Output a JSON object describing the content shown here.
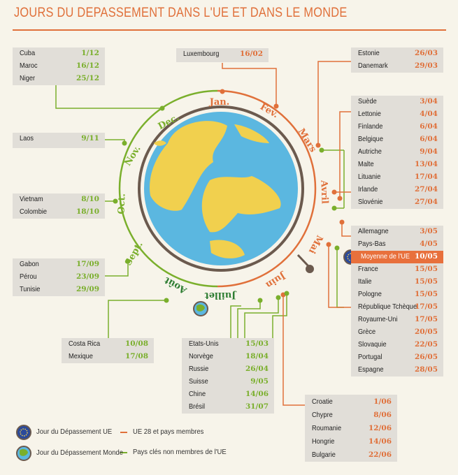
{
  "title": "JOURS DU DEPASSEMENT DANS L'UE ET DANS LE MONDE",
  "colors": {
    "eu": "#e0703a",
    "world": "#7aaf2c",
    "highlight": "#e8703c"
  },
  "months": [
    "Jan.",
    "Fev.",
    "Mars",
    "Avril",
    "Mai",
    "Juin",
    "Juillet",
    "Août",
    "Sept.",
    "Oct.",
    "Nov.",
    "Dec."
  ],
  "groups": {
    "cuba": [
      {
        "country": "Cuba",
        "date": "1/12"
      },
      {
        "country": "Maroc",
        "date": "16/12"
      },
      {
        "country": "Niger",
        "date": "25/12"
      }
    ],
    "laos": [
      {
        "country": "Laos",
        "date": "9/11"
      }
    ],
    "vietnam": [
      {
        "country": "Vietnam",
        "date": "8/10"
      },
      {
        "country": "Colombie",
        "date": "18/10"
      }
    ],
    "gabon": [
      {
        "country": "Gabon",
        "date": "17/09"
      },
      {
        "country": "Pérou",
        "date": "23/09"
      },
      {
        "country": "Tunisie",
        "date": "29/09"
      }
    ],
    "costarica": [
      {
        "country": "Costa Rica",
        "date": "10/08"
      },
      {
        "country": "Mexique",
        "date": "17/08"
      }
    ],
    "usa": [
      {
        "country": "Etats-Unis",
        "date": "15/03"
      },
      {
        "country": "Norvège",
        "date": "18/04"
      },
      {
        "country": "Russie",
        "date": "26/04"
      },
      {
        "country": "Suisse",
        "date": "9/05"
      },
      {
        "country": "Chine",
        "date": "14/06"
      },
      {
        "country": "Brésil",
        "date": "31/07"
      }
    ],
    "luxembourg": [
      {
        "country": "Luxembourg",
        "date": "16/02"
      }
    ],
    "estonie": [
      {
        "country": "Estonie",
        "date": "26/03"
      },
      {
        "country": "Danemark",
        "date": "29/03"
      }
    ],
    "suede": [
      {
        "country": "Suède",
        "date": "3/04"
      },
      {
        "country": "Lettonie",
        "date": "4/04"
      },
      {
        "country": "Finlande",
        "date": "6/04"
      },
      {
        "country": "Belgique",
        "date": "6/04"
      },
      {
        "country": "Autriche",
        "date": "9/04"
      },
      {
        "country": "Malte",
        "date": "13/04"
      },
      {
        "country": "Lituanie",
        "date": "17/04"
      },
      {
        "country": "Irlande",
        "date": "27/04"
      },
      {
        "country": "Slovénie",
        "date": "27/04"
      }
    ],
    "allemagne": [
      {
        "country": "Allemagne",
        "date": "3/05"
      },
      {
        "country": "Pays-Bas",
        "date": "4/05"
      },
      {
        "country": "Moyenne de l'UE",
        "date": "10/05"
      },
      {
        "country": "France",
        "date": "15/05"
      },
      {
        "country": "Italie",
        "date": "15/05"
      },
      {
        "country": "Pologne",
        "date": "15/05"
      },
      {
        "country": "République Tchèque",
        "date": "17/05"
      },
      {
        "country": "Royaume-Uni",
        "date": "17/05"
      },
      {
        "country": "Grèce",
        "date": "20/05"
      },
      {
        "country": "Slovaquie",
        "date": "22/05"
      },
      {
        "country": "Portugal",
        "date": "26/05"
      },
      {
        "country": "Espagne",
        "date": "28/05"
      }
    ],
    "croatie": [
      {
        "country": "Croatie",
        "date": "1/06"
      },
      {
        "country": "Chypre",
        "date": "8/06"
      },
      {
        "country": "Roumanie",
        "date": "12/06"
      },
      {
        "country": "Hongrie",
        "date": "14/06"
      },
      {
        "country": "Bulgarie",
        "date": "22/06"
      }
    ]
  },
  "legend": {
    "eu_day": "Jour du Dépassement UE",
    "world_day": "Jour du Dépassement Monde",
    "eu_members": "UE 28 et pays membres",
    "non_members": "Pays clés non membres de l'UE"
  }
}
